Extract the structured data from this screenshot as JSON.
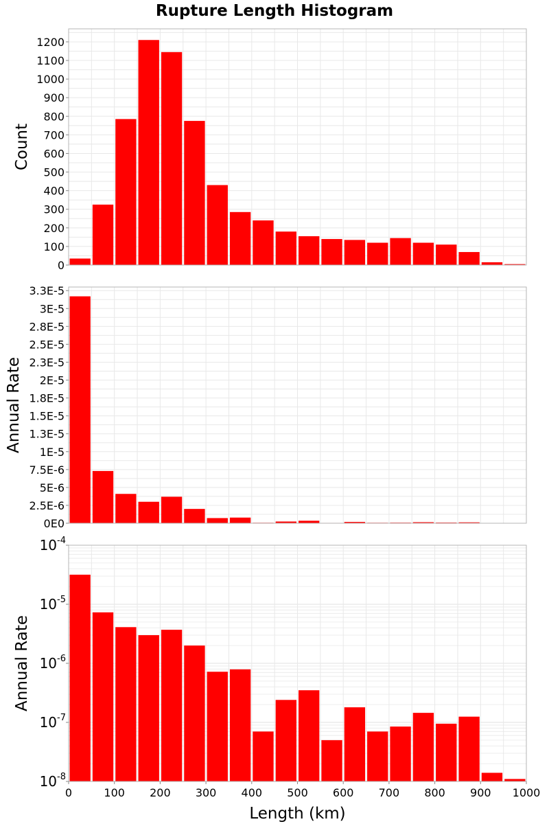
{
  "title": "Rupture Length Histogram",
  "colors": {
    "bar": "#ff0000",
    "grid": "#e8e8e8",
    "frame": "#b4b4b4"
  },
  "chart_data": [
    {
      "type": "bar",
      "scale": "linear",
      "xlabel": "",
      "ylabel": "Count",
      "xlim": [
        0,
        1000
      ],
      "bin_width": 50,
      "bin_starts": [
        0,
        50,
        100,
        150,
        200,
        250,
        300,
        350,
        400,
        450,
        500,
        550,
        600,
        650,
        700,
        750,
        800,
        850,
        900,
        950
      ],
      "values": [
        35,
        325,
        785,
        1210,
        1145,
        775,
        430,
        285,
        240,
        180,
        155,
        140,
        135,
        120,
        145,
        120,
        110,
        70,
        15,
        5
      ],
      "ylim": [
        0,
        1270
      ],
      "yticks": [
        0,
        100,
        200,
        300,
        400,
        500,
        600,
        700,
        800,
        900,
        1000,
        1100,
        1200
      ],
      "ytick_labels": [
        "0",
        "100",
        "200",
        "300",
        "400",
        "500",
        "600",
        "700",
        "800",
        "900",
        "1000",
        "1100",
        "1200"
      ],
      "grid": true
    },
    {
      "type": "bar",
      "scale": "linear",
      "xlabel": "",
      "ylabel": "Annual Rate",
      "xlim": [
        0,
        1000
      ],
      "bin_width": 50,
      "bin_starts": [
        0,
        50,
        100,
        150,
        200,
        250,
        300,
        350,
        400,
        450,
        500,
        550,
        600,
        650,
        700,
        750,
        800,
        850,
        900,
        950
      ],
      "values": [
        3.17e-05,
        7.3e-06,
        4.1e-06,
        3e-06,
        3.7e-06,
        2e-06,
        7.2e-07,
        7.9e-07,
        7e-08,
        2.4e-07,
        3.5e-07,
        5e-08,
        1.8e-07,
        7e-08,
        8.5e-08,
        1.45e-07,
        9.5e-08,
        1.25e-07,
        1.4e-08,
        1.1e-08
      ],
      "ylim": [
        0,
        3.3e-05
      ],
      "yticks": [
        0,
        2.5e-06,
        5e-06,
        7.5e-06,
        1e-05,
        1.25e-05,
        1.5e-05,
        1.75e-05,
        2e-05,
        2.25e-05,
        2.5e-05,
        2.75e-05,
        3e-05,
        3.25e-05
      ],
      "ytick_labels": [
        "0E0",
        "2.5E-6",
        "5E-6",
        "7.5E-6",
        "1E-5",
        "1.3E-5",
        "1.5E-5",
        "1.8E-5",
        "2E-5",
        "2.3E-5",
        "2.5E-5",
        "2.8E-5",
        "3E-5",
        "3.3E-5"
      ],
      "grid": true
    },
    {
      "type": "bar",
      "scale": "log",
      "xlabel": "Length (km)",
      "ylabel": "Annual Rate",
      "xlim": [
        0,
        1000
      ],
      "bin_width": 50,
      "bin_starts": [
        0,
        50,
        100,
        150,
        200,
        250,
        300,
        350,
        400,
        450,
        500,
        550,
        600,
        650,
        700,
        750,
        800,
        850,
        900,
        950
      ],
      "values": [
        3.17e-05,
        7.3e-06,
        4.1e-06,
        3e-06,
        3.7e-06,
        2e-06,
        7.2e-07,
        7.9e-07,
        7e-08,
        2.4e-07,
        3.5e-07,
        5e-08,
        1.8e-07,
        7e-08,
        8.5e-08,
        1.45e-07,
        9.5e-08,
        1.25e-07,
        1.4e-08,
        1.1e-08
      ],
      "ylim": [
        1e-08,
        0.0001
      ],
      "ytick_exponents": [
        -8,
        -7,
        -6,
        -5,
        -4
      ],
      "ytick_base": "10",
      "ytick_sup_labels": [
        "-8",
        "-7",
        "-6",
        "-5",
        "-4"
      ],
      "xticks": [
        0,
        100,
        200,
        300,
        400,
        500,
        600,
        700,
        800,
        900,
        1000
      ],
      "xtick_labels": [
        "0",
        "100",
        "200",
        "300",
        "400",
        "500",
        "600",
        "700",
        "800",
        "900",
        "1000"
      ],
      "grid": true
    }
  ]
}
